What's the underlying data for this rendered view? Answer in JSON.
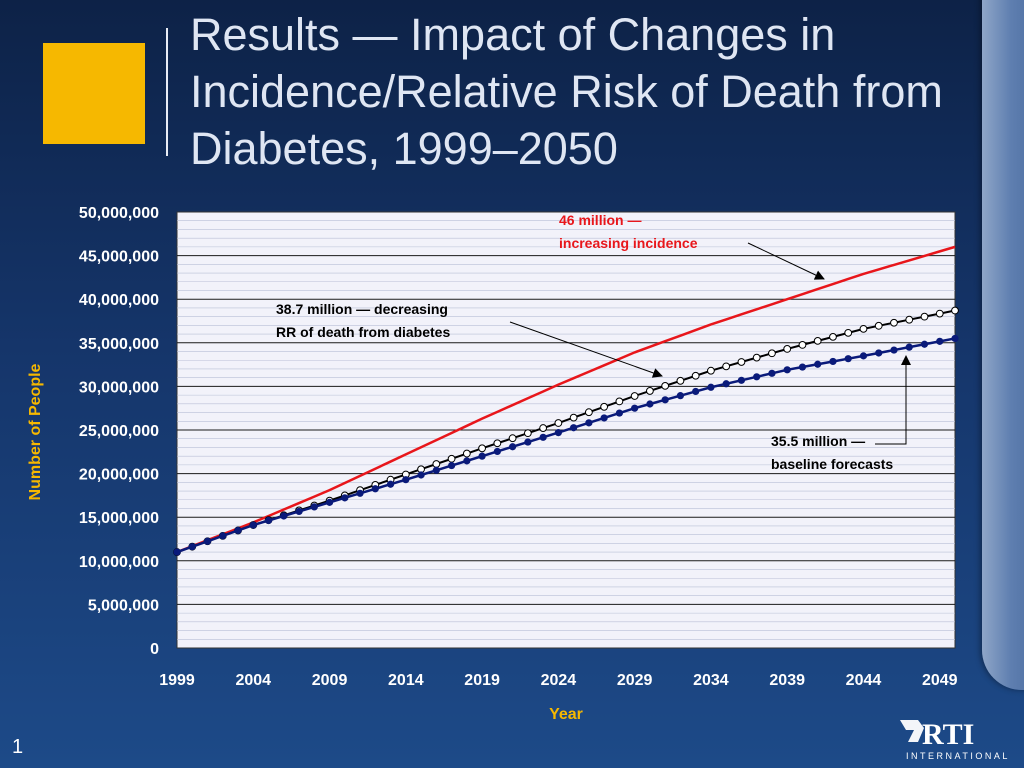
{
  "slide": {
    "title": "Results — Impact of Changes in Incidence/Relative Risk of Death from Diabetes, 1999–2050",
    "page_number": "1",
    "logo_text": "RTI",
    "logo_subtext": "INTERNATIONAL"
  },
  "colors": {
    "accent_square": "#f6b800",
    "red_series": "#e8161b",
    "white_series": "#ffffff",
    "navy_series": "#0a1a7a",
    "plot_bg": "#f2f2fa"
  },
  "chart_data": {
    "type": "line",
    "title": "",
    "xlabel": "Year",
    "ylabel": "Number of People",
    "xlim": [
      1999,
      2050
    ],
    "ylim": [
      0,
      50000000
    ],
    "x_ticks": [
      1999,
      2004,
      2009,
      2014,
      2019,
      2024,
      2029,
      2034,
      2039,
      2044,
      2049
    ],
    "y_tick_labels": [
      "0",
      "5,000,000",
      "10,000,000",
      "15,000,000",
      "20,000,000",
      "25,000,000",
      "30,000,000",
      "35,000,000",
      "40,000,000",
      "45,000,000",
      "50,000,000"
    ],
    "grid": true,
    "legend": "none",
    "series": [
      {
        "key": "increasing_incidence",
        "marker": "none",
        "x": [
          1999,
          2004,
          2009,
          2014,
          2019,
          2024,
          2029,
          2034,
          2039,
          2044,
          2050
        ],
        "values": [
          11000000,
          14400000,
          18100000,
          22200000,
          26300000,
          30200000,
          33900000,
          37100000,
          40000000,
          42900000,
          46000000
        ]
      },
      {
        "key": "decreasing_rr",
        "marker": "open-circle",
        "x": [
          1999,
          2004,
          2009,
          2014,
          2019,
          2024,
          2029,
          2034,
          2039,
          2044,
          2050
        ],
        "values": [
          11000000,
          14100000,
          16900000,
          19900000,
          22900000,
          25800000,
          28900000,
          31800000,
          34300000,
          36600000,
          38700000
        ]
      },
      {
        "key": "baseline",
        "marker": "filled-circle",
        "x": [
          1999,
          2004,
          2009,
          2014,
          2019,
          2024,
          2029,
          2034,
          2039,
          2044,
          2050
        ],
        "values": [
          11000000,
          14100000,
          16700000,
          19300000,
          22000000,
          24700000,
          27500000,
          29900000,
          31900000,
          33500000,
          35500000
        ]
      }
    ],
    "annotations": [
      {
        "key": "red",
        "lines": [
          "46 million —",
          "increasing incidence"
        ]
      },
      {
        "key": "white",
        "lines": [
          "38.7 million — decreasing",
          "RR of death from diabetes"
        ]
      },
      {
        "key": "navy",
        "lines": [
          "35.5 million —",
          "baseline forecasts"
        ]
      }
    ]
  }
}
